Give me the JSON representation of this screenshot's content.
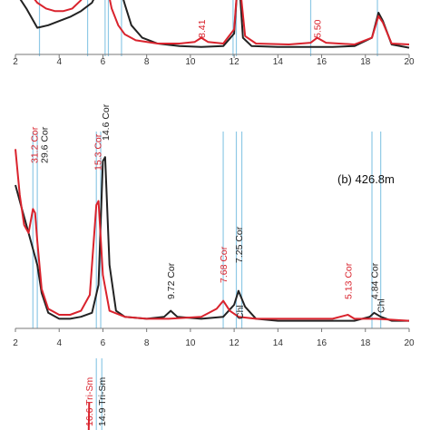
{
  "colors": {
    "sample_a": "#222222",
    "sample_b": "#d9232d",
    "reference_line": "#8fc9e6",
    "axis": "#777777"
  },
  "chart_data": [
    {
      "type": "line",
      "panel": "a (cropped)",
      "title": "",
      "xlabel": "",
      "ylabel": "",
      "xlim": [
        2,
        20
      ],
      "x_ticks": [
        "2",
        "4",
        "6",
        "8",
        "10",
        "12",
        "14",
        "16",
        "18",
        "20"
      ],
      "reference_lines_x": [
        3.1,
        5.3,
        6.1,
        6.25,
        6.85,
        11.95,
        12.1,
        15.5,
        18.55
      ],
      "peak_labels": [
        {
          "text": "8.41",
          "x": 10.5,
          "color": "#d9232d"
        },
        {
          "text": "5.50",
          "x": 15.8,
          "color": "#d9232d"
        }
      ],
      "series": [
        {
          "color": "#222222",
          "points": [
            [
              2.0,
              0.75
            ],
            [
              2.5,
              0.55
            ],
            [
              3.0,
              0.32
            ],
            [
              3.5,
              0.35
            ],
            [
              4.0,
              0.4
            ],
            [
              4.5,
              0.45
            ],
            [
              5.0,
              0.52
            ],
            [
              5.5,
              0.62
            ],
            [
              5.8,
              0.78
            ],
            [
              6.0,
              1.0
            ],
            [
              6.2,
              0.92
            ],
            [
              6.4,
              0.85
            ],
            [
              6.6,
              0.8
            ],
            [
              6.8,
              0.78
            ],
            [
              7.0,
              0.6
            ],
            [
              7.3,
              0.35
            ],
            [
              7.8,
              0.2
            ],
            [
              8.5,
              0.13
            ],
            [
              9.5,
              0.1
            ],
            [
              10.5,
              0.09
            ],
            [
              11.5,
              0.1
            ],
            [
              12.0,
              0.25
            ],
            [
              12.2,
              1.0
            ],
            [
              12.4,
              0.2
            ],
            [
              12.8,
              0.1
            ],
            [
              14.0,
              0.09
            ],
            [
              15.5,
              0.09
            ],
            [
              16.5,
              0.09
            ],
            [
              17.5,
              0.1
            ],
            [
              18.3,
              0.2
            ],
            [
              18.6,
              0.5
            ],
            [
              18.8,
              0.4
            ],
            [
              19.2,
              0.12
            ],
            [
              20.0,
              0.08
            ]
          ]
        },
        {
          "color": "#d9232d",
          "points": [
            [
              2.0,
              0.98
            ],
            [
              2.2,
              0.9
            ],
            [
              2.6,
              0.75
            ],
            [
              3.0,
              0.62
            ],
            [
              3.4,
              0.55
            ],
            [
              3.8,
              0.52
            ],
            [
              4.2,
              0.52
            ],
            [
              4.6,
              0.55
            ],
            [
              5.0,
              0.65
            ],
            [
              5.3,
              0.8
            ],
            [
              5.5,
              0.95
            ],
            [
              5.8,
              0.98
            ],
            [
              6.0,
              1.0
            ],
            [
              6.2,
              0.8
            ],
            [
              6.4,
              0.55
            ],
            [
              6.7,
              0.35
            ],
            [
              7.0,
              0.24
            ],
            [
              7.5,
              0.17
            ],
            [
              8.5,
              0.13
            ],
            [
              9.5,
              0.13
            ],
            [
              10.2,
              0.15
            ],
            [
              10.5,
              0.2
            ],
            [
              10.8,
              0.15
            ],
            [
              11.5,
              0.13
            ],
            [
              12.0,
              0.3
            ],
            [
              12.2,
              1.0
            ],
            [
              12.5,
              0.22
            ],
            [
              13.0,
              0.13
            ],
            [
              14.5,
              0.12
            ],
            [
              15.5,
              0.14
            ],
            [
              15.8,
              0.2
            ],
            [
              16.2,
              0.14
            ],
            [
              17.5,
              0.12
            ],
            [
              18.3,
              0.2
            ],
            [
              18.6,
              0.46
            ],
            [
              18.8,
              0.38
            ],
            [
              19.2,
              0.13
            ],
            [
              20.0,
              0.12
            ]
          ]
        }
      ]
    },
    {
      "type": "line",
      "panel": "b",
      "title": "(b) 426.8m",
      "xlabel": "",
      "ylabel": "",
      "xlim": [
        2,
        20
      ],
      "x_ticks": [
        "2",
        "4",
        "6",
        "8",
        "10",
        "12",
        "14",
        "16",
        "18",
        "20"
      ],
      "reference_lines_x": [
        2.8,
        3.0,
        5.7,
        5.9,
        11.5,
        12.1,
        12.35,
        18.3,
        18.7
      ],
      "peak_labels": [
        {
          "text": "31.2 Cor",
          "x": 2.85,
          "color": "#d9232d"
        },
        {
          "text": "29.6 Cor",
          "x": 3.3,
          "color": "#222222"
        },
        {
          "text": "15.3 Cor",
          "x": 5.75,
          "color": "#d9232d"
        },
        {
          "text": "14.6 Cor",
          "x": 6.1,
          "color": "#222222"
        },
        {
          "text": "9.72 Cor",
          "x": 9.1,
          "color": "#222222"
        },
        {
          "text": "7.68 Cor",
          "x": 11.5,
          "color": "#d9232d"
        },
        {
          "text": "7.25 Cor",
          "x": 12.2,
          "color": "#222222"
        },
        {
          "text": "Chl",
          "x": 12.25,
          "color": "#222222"
        },
        {
          "text": "5.13 Cor",
          "x": 17.2,
          "color": "#d9232d"
        },
        {
          "text": "4.84 Cor",
          "x": 18.4,
          "color": "#222222"
        },
        {
          "text": "Chl",
          "x": 18.7,
          "color": "#222222"
        }
      ],
      "series": [
        {
          "color": "#222222",
          "points": [
            [
              2.0,
              0.7
            ],
            [
              2.3,
              0.58
            ],
            [
              2.6,
              0.46
            ],
            [
              2.8,
              0.38
            ],
            [
              3.0,
              0.3
            ],
            [
              3.2,
              0.16
            ],
            [
              3.5,
              0.06
            ],
            [
              4.0,
              0.03
            ],
            [
              4.5,
              0.03
            ],
            [
              5.0,
              0.04
            ],
            [
              5.5,
              0.06
            ],
            [
              5.8,
              0.2
            ],
            [
              6.0,
              0.82
            ],
            [
              6.1,
              0.84
            ],
            [
              6.3,
              0.3
            ],
            [
              6.6,
              0.07
            ],
            [
              7.0,
              0.04
            ],
            [
              8.0,
              0.03
            ],
            [
              8.8,
              0.04
            ],
            [
              9.1,
              0.07
            ],
            [
              9.4,
              0.04
            ],
            [
              10.5,
              0.03
            ],
            [
              11.5,
              0.04
            ],
            [
              12.0,
              0.1
            ],
            [
              12.2,
              0.17
            ],
            [
              12.5,
              0.09
            ],
            [
              13.0,
              0.03
            ],
            [
              14.0,
              0.02
            ],
            [
              15.0,
              0.02
            ],
            [
              16.0,
              0.02
            ],
            [
              17.5,
              0.02
            ],
            [
              18.2,
              0.04
            ],
            [
              18.4,
              0.06
            ],
            [
              18.7,
              0.04
            ],
            [
              19.2,
              0.02
            ],
            [
              20.0,
              0.02
            ]
          ]
        },
        {
          "color": "#d9232d",
          "points": [
            [
              2.0,
              0.88
            ],
            [
              2.2,
              0.65
            ],
            [
              2.4,
              0.5
            ],
            [
              2.6,
              0.46
            ],
            [
              2.8,
              0.58
            ],
            [
              2.9,
              0.56
            ],
            [
              3.0,
              0.42
            ],
            [
              3.2,
              0.18
            ],
            [
              3.5,
              0.08
            ],
            [
              4.0,
              0.05
            ],
            [
              4.5,
              0.05
            ],
            [
              5.0,
              0.07
            ],
            [
              5.4,
              0.15
            ],
            [
              5.7,
              0.6
            ],
            [
              5.8,
              0.62
            ],
            [
              6.0,
              0.25
            ],
            [
              6.3,
              0.07
            ],
            [
              7.0,
              0.04
            ],
            [
              8.0,
              0.03
            ],
            [
              9.0,
              0.03
            ],
            [
              10.5,
              0.04
            ],
            [
              11.2,
              0.08
            ],
            [
              11.5,
              0.12
            ],
            [
              11.8,
              0.07
            ],
            [
              12.2,
              0.04
            ],
            [
              13.0,
              0.03
            ],
            [
              14.0,
              0.03
            ],
            [
              15.0,
              0.03
            ],
            [
              16.5,
              0.03
            ],
            [
              17.2,
              0.05
            ],
            [
              17.5,
              0.03
            ],
            [
              18.5,
              0.03
            ],
            [
              20.0,
              0.02
            ]
          ]
        }
      ]
    },
    {
      "type": "line",
      "panel": "c (cropped)",
      "title": "",
      "xlim": [
        2,
        20
      ],
      "reference_lines_x": [
        5.7,
        5.95
      ],
      "peak_labels": [
        {
          "text": "16.6 Tri-Sm",
          "x": 5.35,
          "color": "#d9232d"
        },
        {
          "text": "14.9 Tri-Sm",
          "x": 5.95,
          "color": "#222222"
        }
      ],
      "series": [
        {
          "color": "#d9232d",
          "points": [
            [
              5.35,
              0.0
            ],
            [
              5.37,
              0.3
            ]
          ]
        }
      ]
    }
  ]
}
